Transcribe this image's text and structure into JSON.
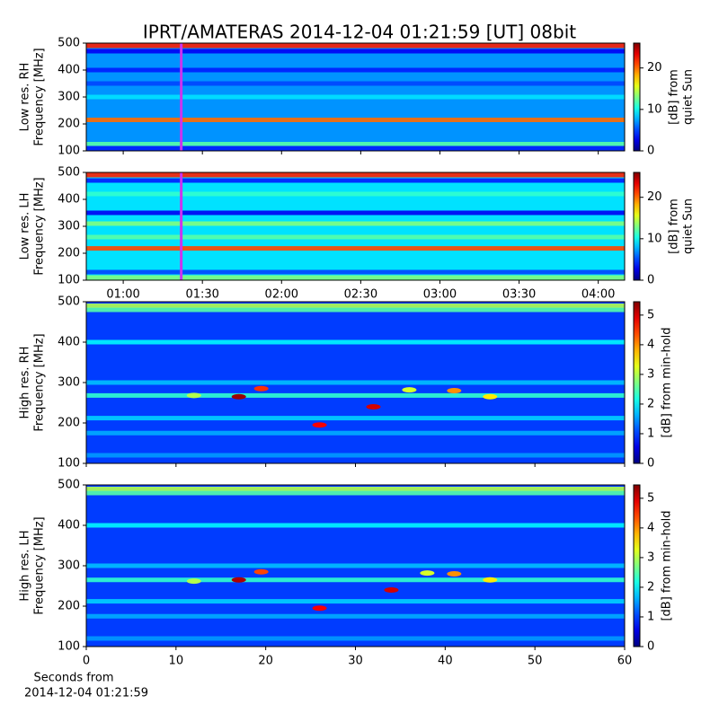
{
  "figure": {
    "title": "IPRT/AMATERAS 2014-12-04 01:21:59 [UT]   08bit",
    "footnote": [
      "Seconds from",
      "2014-12-04 01:21:59"
    ]
  },
  "chart_data": [
    {
      "type": "heatmap",
      "ylabel": [
        "Low res. RH",
        "Frequency [MHz]"
      ],
      "cbar_label": [
        "[dB] from",
        "quiet Sun"
      ],
      "xlim": [
        46,
        250
      ],
      "xticks": [
        {
          "value": 60,
          "label": "01:00"
        },
        {
          "value": 90,
          "label": "01:30"
        },
        {
          "value": 120,
          "label": "02:00"
        },
        {
          "value": 150,
          "label": "02:30"
        },
        {
          "value": 180,
          "label": "03:00"
        },
        {
          "value": 210,
          "label": "03:30"
        },
        {
          "value": 240,
          "label": "04:00"
        }
      ],
      "xtick_labels": false,
      "ylim": [
        100,
        500
      ],
      "yticks": [
        100,
        200,
        300,
        400,
        500
      ],
      "clim": [
        0,
        26
      ],
      "cticks": [
        0,
        10,
        20
      ],
      "background": 7,
      "marker_x": 81.98,
      "marker_color": "#cc33ee",
      "bands": {
        "freq": [
          490,
          470,
          400,
          350,
          300,
          215,
          125,
          110
        ],
        "values": [
          22,
          3,
          4,
          5,
          9,
          20,
          12,
          4
        ]
      },
      "spots": []
    },
    {
      "type": "heatmap",
      "ylabel": [
        "Low res. LH",
        "Frequency [MHz]"
      ],
      "cbar_label": [
        "[dB] from",
        "quiet Sun"
      ],
      "xlim": [
        46,
        250
      ],
      "xticks": [
        {
          "value": 60,
          "label": "01:00"
        },
        {
          "value": 90,
          "label": "01:30"
        },
        {
          "value": 120,
          "label": "02:00"
        },
        {
          "value": 150,
          "label": "02:30"
        },
        {
          "value": 180,
          "label": "03:00"
        },
        {
          "value": 210,
          "label": "03:30"
        },
        {
          "value": 240,
          "label": "04:00"
        }
      ],
      "xtick_labels": true,
      "ylim": [
        100,
        500
      ],
      "yticks": [
        100,
        200,
        300,
        400,
        500
      ],
      "clim": [
        0,
        26
      ],
      "cticks": [
        0,
        10,
        20
      ],
      "background": 9,
      "marker_x": 81.98,
      "marker_color": "#cc33ee",
      "bands": {
        "freq": [
          490,
          470,
          420,
          350,
          310,
          260,
          218,
          130,
          110
        ],
        "values": [
          22,
          4,
          11,
          3,
          13,
          12,
          21,
          5,
          13
        ]
      },
      "spots": []
    },
    {
      "type": "heatmap",
      "ylabel": [
        "High res. RH",
        "Frequency [MHz]"
      ],
      "cbar_label": [
        "[dB] from min-hold"
      ],
      "xlim": [
        0,
        60
      ],
      "xticks": [
        0,
        10,
        20,
        30,
        40,
        50,
        60
      ],
      "xtick_labels": false,
      "ylim": [
        100,
        500
      ],
      "yticks": [
        100,
        200,
        300,
        400,
        500
      ],
      "clim": [
        0,
        5.45
      ],
      "cticks": [
        0,
        1,
        2,
        3,
        4,
        5
      ],
      "background": 1,
      "bands": {
        "freq": [
          490,
          480,
          400,
          300,
          268,
          212,
          175,
          120
        ],
        "values": [
          3,
          2.5,
          2,
          1.7,
          2.3,
          1.8,
          1.6,
          1.5
        ]
      },
      "spots": {
        "x": [
          17,
          19.5,
          32,
          26,
          41,
          45,
          36,
          12
        ],
        "y": [
          265,
          285,
          240,
          195,
          280,
          265,
          282,
          268
        ],
        "values": [
          5.3,
          4.5,
          5,
          4.8,
          4,
          3.5,
          3.2,
          3
        ]
      }
    },
    {
      "type": "heatmap",
      "ylabel": [
        "High res. LH",
        "Frequency [MHz]"
      ],
      "cbar_label": [
        "[dB] from min-hold"
      ],
      "xlim": [
        0,
        60
      ],
      "xticks": [
        0,
        10,
        20,
        30,
        40,
        50,
        60
      ],
      "xtick_labels": true,
      "ylim": [
        100,
        500
      ],
      "yticks": [
        100,
        200,
        300,
        400,
        500
      ],
      "clim": [
        0,
        5.45
      ],
      "cticks": [
        0,
        1,
        2,
        3,
        4,
        5
      ],
      "background": 1,
      "bands": {
        "freq": [
          490,
          480,
          400,
          300,
          265,
          212,
          175,
          120
        ],
        "values": [
          3,
          2.5,
          2,
          1.7,
          2.3,
          1.8,
          1.6,
          1.5
        ]
      },
      "spots": {
        "x": [
          17,
          19.5,
          34,
          26,
          41,
          45,
          38,
          12
        ],
        "y": [
          265,
          285,
          240,
          195,
          280,
          265,
          282,
          262
        ],
        "values": [
          5.2,
          4.4,
          5,
          4.8,
          4,
          3.5,
          3.2,
          3
        ]
      }
    }
  ]
}
